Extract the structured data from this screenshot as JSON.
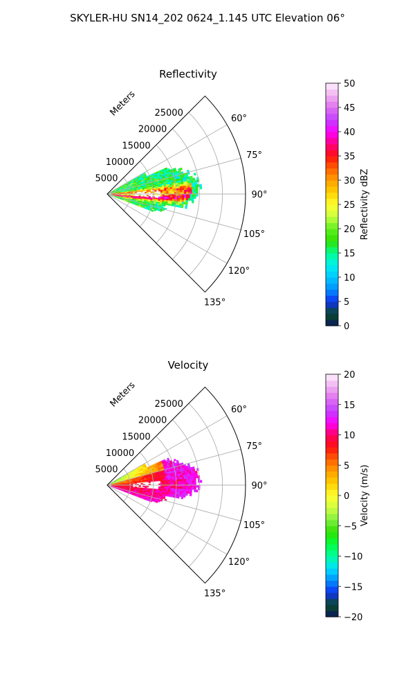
{
  "title": "SKYLER-HU  SN14_202  0624_1.145 UTC Elevation 06°",
  "chart_data": [
    {
      "type": "heatmap",
      "subtype": "polar-sector",
      "title": "Reflectivity",
      "range_axis_label": "Meters",
      "range_ticks": [
        "5000",
        "10000",
        "15000",
        "20000",
        "25000"
      ],
      "range_max_m": 30000,
      "azimuth_range_deg": [
        45,
        135
      ],
      "azimuth_ticks": [
        "60°",
        "75°",
        "90°",
        "105°",
        "120°",
        "135°"
      ],
      "grid": true,
      "colorbar": {
        "label": "Reflectivity dBZ",
        "min": 0,
        "max": 50,
        "ticks": [
          "0",
          "5",
          "10",
          "15",
          "20",
          "25",
          "30",
          "35",
          "40",
          "45",
          "50"
        ],
        "stops": [
          {
            "v": 0,
            "c": "#0a1a5a"
          },
          {
            "v": 2.5,
            "c": "#0b4a2a"
          },
          {
            "v": 5,
            "c": "#1030f0"
          },
          {
            "v": 7.5,
            "c": "#0090ff"
          },
          {
            "v": 10,
            "c": "#00c8ff"
          },
          {
            "v": 12.5,
            "c": "#00f0f0"
          },
          {
            "v": 15,
            "c": "#00ff90"
          },
          {
            "v": 17.5,
            "c": "#30e000"
          },
          {
            "v": 20,
            "c": "#60f020"
          },
          {
            "v": 22.5,
            "c": "#c8ff40"
          },
          {
            "v": 25,
            "c": "#ffff30"
          },
          {
            "v": 27.5,
            "c": "#ffd000"
          },
          {
            "v": 30,
            "c": "#ffa000"
          },
          {
            "v": 32.5,
            "c": "#ff6000"
          },
          {
            "v": 35,
            "c": "#ff1010"
          },
          {
            "v": 37.5,
            "c": "#ff0080"
          },
          {
            "v": 40,
            "c": "#ff00ff"
          },
          {
            "v": 42.5,
            "c": "#c040ff"
          },
          {
            "v": 45,
            "c": "#e070f0"
          },
          {
            "v": 47.5,
            "c": "#f0b0f0"
          },
          {
            "v": 50,
            "c": "#fff0ff"
          }
        ]
      }
    },
    {
      "type": "heatmap",
      "subtype": "polar-sector",
      "title": "Velocity",
      "range_axis_label": "Meters",
      "range_ticks": [
        "5000",
        "10000",
        "15000",
        "20000",
        "25000"
      ],
      "range_max_m": 30000,
      "azimuth_range_deg": [
        45,
        135
      ],
      "azimuth_ticks": [
        "60°",
        "75°",
        "90°",
        "105°",
        "120°",
        "135°"
      ],
      "grid": true,
      "colorbar": {
        "label": "Velocity (m/s)",
        "min": -20,
        "max": 20,
        "ticks": [
          "−20",
          "−15",
          "−10",
          "−5",
          "0",
          "5",
          "10",
          "15",
          "20"
        ],
        "stops": [
          {
            "v": -20,
            "c": "#0a1a5a"
          },
          {
            "v": -18,
            "c": "#0b4a2a"
          },
          {
            "v": -16,
            "c": "#1030f0"
          },
          {
            "v": -14,
            "c": "#0090ff"
          },
          {
            "v": -12,
            "c": "#00e0ff"
          },
          {
            "v": -10,
            "c": "#00ffa0"
          },
          {
            "v": -8,
            "c": "#00ff40"
          },
          {
            "v": -6,
            "c": "#30e000"
          },
          {
            "v": -4,
            "c": "#80f040"
          },
          {
            "v": -2,
            "c": "#d0ff40"
          },
          {
            "v": 0,
            "c": "#ffff30"
          },
          {
            "v": 2,
            "c": "#ffd000"
          },
          {
            "v": 4,
            "c": "#ffa000"
          },
          {
            "v": 6,
            "c": "#ff6000"
          },
          {
            "v": 8,
            "c": "#ff1010"
          },
          {
            "v": 10,
            "c": "#ff0060"
          },
          {
            "v": 12,
            "c": "#ff00ff"
          },
          {
            "v": 14,
            "c": "#c040ff"
          },
          {
            "v": 16,
            "c": "#e070f0"
          },
          {
            "v": 18,
            "c": "#f0b0f0"
          },
          {
            "v": 20,
            "c": "#fff0ff"
          }
        ]
      }
    }
  ]
}
